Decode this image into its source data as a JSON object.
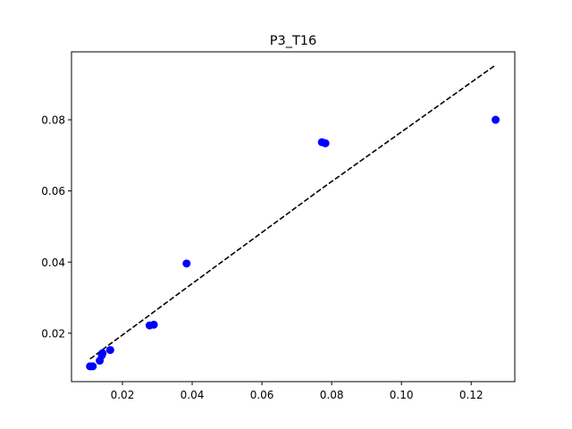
{
  "chart_data": {
    "type": "scatter",
    "title": "P3_T16",
    "xlabel": "",
    "ylabel": "",
    "xlim": [
      0.0054,
      0.1325
    ],
    "ylim": [
      0.0064,
      0.0991
    ],
    "x_ticks": [
      0.02,
      0.04,
      0.06,
      0.08,
      0.1,
      0.12
    ],
    "x_tick_labels": [
      "0.02",
      "0.04",
      "0.06",
      "0.08",
      "0.10",
      "0.12"
    ],
    "y_ticks": [
      0.02,
      0.04,
      0.06,
      0.08
    ],
    "y_tick_labels": [
      "0.02",
      "0.04",
      "0.06",
      "0.08"
    ],
    "grid": false,
    "colors": {
      "points": "#0000ff",
      "fit_line": "#000000"
    },
    "series": [
      {
        "type": "scatter",
        "x": [
          0.0107,
          0.0115,
          0.0135,
          0.0141,
          0.0143,
          0.0165,
          0.0278,
          0.029,
          0.0384,
          0.0772,
          0.0782,
          0.127
        ],
        "y": [
          0.0107,
          0.0107,
          0.0123,
          0.0138,
          0.0144,
          0.0153,
          0.0222,
          0.0224,
          0.0396,
          0.0737,
          0.0734,
          0.08
        ]
      },
      {
        "type": "line",
        "style": "dashed",
        "x": [
          0.0107,
          0.0115,
          0.0135,
          0.0141,
          0.0143,
          0.0165,
          0.0278,
          0.029,
          0.0384,
          0.0772,
          0.0782,
          0.127
        ],
        "y": [
          0.0128,
          0.0133,
          0.0148,
          0.0152,
          0.0154,
          0.017,
          0.0251,
          0.026,
          0.0328,
          0.0607,
          0.0614,
          0.0954
        ]
      }
    ]
  }
}
